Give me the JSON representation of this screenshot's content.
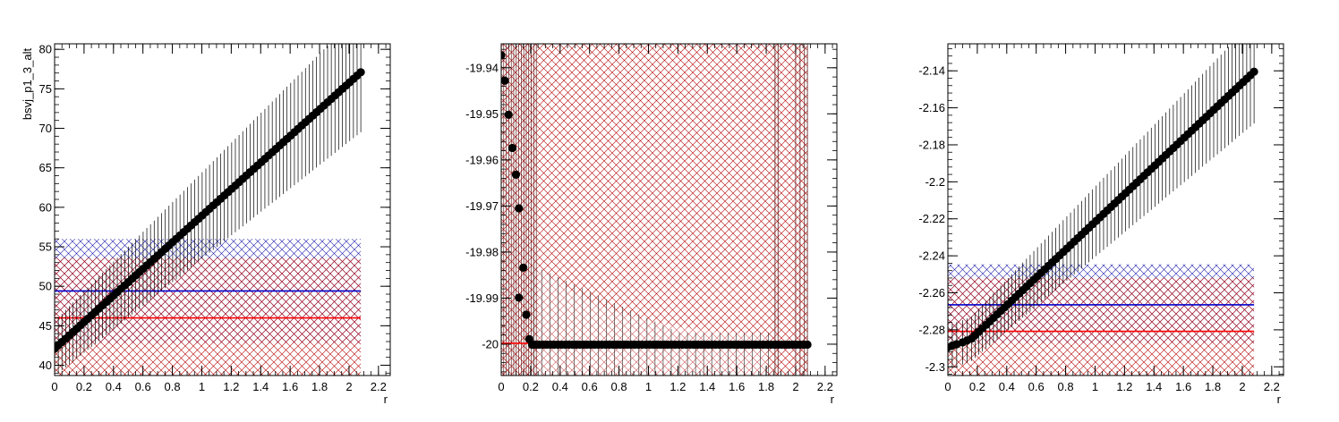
{
  "colors": {
    "points": "#000000",
    "red_line": "#ff0000",
    "blue_line": "#0000cc",
    "red_hatch": "#aa0000",
    "blue_hatch": "#0000aa"
  },
  "chart_data": [
    {
      "type": "scatter",
      "ylabel": "bsvj_p1_3_alt",
      "xlabel": "r",
      "xlim": [
        0,
        2.28
      ],
      "ylim": [
        38.7,
        80.7
      ],
      "xticks": [
        "0",
        "0.2",
        "0.4",
        "0.6",
        "0.8",
        "1",
        "1.2",
        "1.4",
        "1.6",
        "1.8",
        "2",
        "2.2"
      ],
      "xtick_values": [
        0,
        0.2,
        0.4,
        0.6,
        0.8,
        1,
        1.2,
        1.4,
        1.6,
        1.8,
        2,
        2.2
      ],
      "yticks": [
        "40",
        "45",
        "50",
        "55",
        "60",
        "65",
        "70",
        "75",
        "80"
      ],
      "ytick_values": [
        40,
        45,
        50,
        55,
        60,
        65,
        70,
        75,
        80
      ],
      "points": {
        "x_start": 0,
        "x_end": 2.08,
        "y_start": 42.1,
        "y_end": 77.1,
        "count": 84
      },
      "point_error": {
        "at_start": 3.5,
        "at_end": 7.6
      },
      "red_line": {
        "y": 46.0,
        "band": [
          38.7,
          53.6
        ]
      },
      "blue_line": {
        "y": 49.4,
        "band": [
          42.8,
          56.0
        ]
      },
      "band_x": [
        0,
        2.08
      ],
      "grid": false,
      "legend": "none"
    },
    {
      "type": "scatter",
      "ylabel": "",
      "xlabel": "r",
      "xlim": [
        0,
        2.28
      ],
      "ylim": [
        -20.0068,
        -19.9348
      ],
      "xticks": [
        "0",
        "0.2",
        "0.4",
        "0.6",
        "0.8",
        "1",
        "1.2",
        "1.4",
        "1.6",
        "1.8",
        "2",
        "2.2"
      ],
      "xtick_values": [
        0,
        0.2,
        0.4,
        0.6,
        0.8,
        1,
        1.2,
        1.4,
        1.6,
        1.8,
        2,
        2.2
      ],
      "yticks": [
        "-19.94",
        "-19.95",
        "-19.96",
        "-19.97",
        "-19.98",
        "-19.99",
        "-20"
      ],
      "ytick_values": [
        -19.94,
        -19.95,
        -19.96,
        -19.97,
        -19.98,
        -19.99,
        -20
      ],
      "points": [
        [
          0.0,
          -19.9373
        ],
        [
          0.025,
          -19.9428
        ],
        [
          0.05,
          -19.9502
        ],
        [
          0.075,
          -19.9574
        ],
        [
          0.1,
          -19.9632
        ],
        [
          0.12,
          -19.9705
        ],
        [
          0.15,
          -19.9834
        ],
        [
          0.12,
          -19.9899
        ],
        [
          0.17,
          -19.9936
        ],
        [
          0.19,
          -19.9989
        ],
        [
          0.21,
          -20.0001
        ]
      ],
      "flat_points": {
        "x_start": 0.21,
        "x_end": 2.08,
        "y": -20.0001,
        "count": 76
      },
      "red_line": {
        "y": -19.9998
      },
      "band_x": [
        0,
        2.08
      ],
      "grid": false,
      "legend": "none"
    },
    {
      "type": "scatter",
      "ylabel": "",
      "xlabel": "r",
      "xlim": [
        0,
        2.28
      ],
      "ylim": [
        -2.3047,
        -2.1254
      ],
      "xticks": [
        "0",
        "0.2",
        "0.4",
        "0.6",
        "0.8",
        "1",
        "1.2",
        "1.4",
        "1.6",
        "1.8",
        "2",
        "2.2"
      ],
      "xtick_values": [
        0,
        0.2,
        0.4,
        0.6,
        0.8,
        1,
        1.2,
        1.4,
        1.6,
        1.8,
        2,
        2.2
      ],
      "yticks": [
        "-2.14",
        "-2.16",
        "-2.18",
        "-2.2",
        "-2.22",
        "-2.24",
        "-2.26",
        "-2.28",
        "-2.3"
      ],
      "ytick_values": [
        -2.14,
        -2.16,
        -2.18,
        -2.2,
        -2.22,
        -2.24,
        -2.26,
        -2.28,
        -2.3
      ],
      "points": {
        "x_start": 0.16,
        "x_end": 2.08,
        "y_start": -2.2848,
        "y_end": -2.1405,
        "count": 78
      },
      "early_points": [
        [
          0.0,
          -2.2895
        ],
        [
          0.03,
          -2.2885
        ],
        [
          0.06,
          -2.2878
        ],
        [
          0.1,
          -2.2868
        ],
        [
          0.13,
          -2.2858
        ]
      ],
      "point_error": {
        "at_start": 0.012,
        "at_end": 0.028
      },
      "red_line": {
        "y": -2.2808,
        "band": [
          -2.3047,
          -2.2518
        ]
      },
      "blue_line": {
        "y": -2.2665,
        "band": [
          -2.2871,
          -2.2446
        ]
      },
      "band_x": [
        0,
        2.08
      ],
      "grid": false,
      "legend": "none"
    }
  ]
}
